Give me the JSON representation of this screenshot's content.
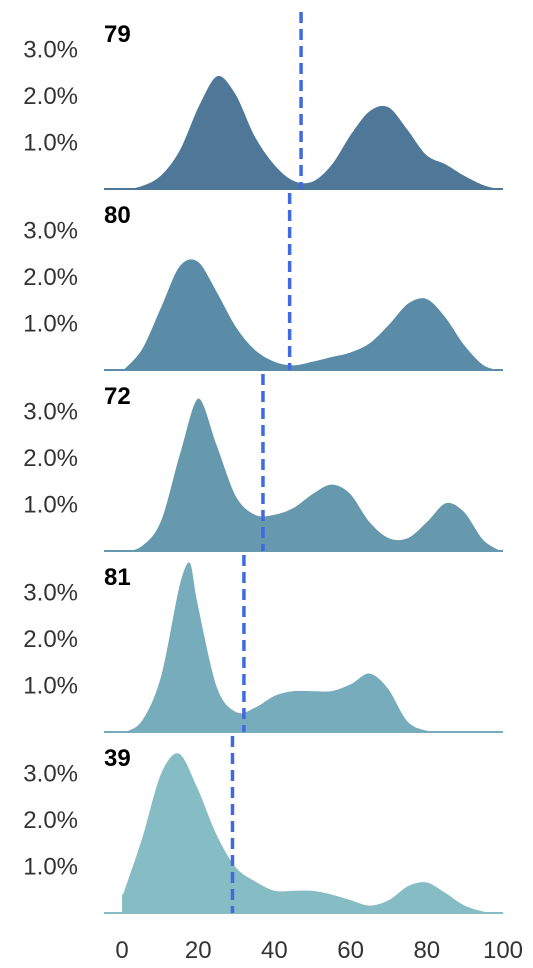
{
  "chart_data": {
    "type": "area",
    "title": "",
    "xlabel": "",
    "ylabel": "",
    "xlim": [
      0,
      100
    ],
    "ylim": [
      0,
      3.6
    ],
    "x_ticks": [
      0,
      20,
      40,
      60,
      80,
      100
    ],
    "x_tick_labels": [
      "0",
      "20",
      "40",
      "60",
      "80",
      "100"
    ],
    "y_ticks": [
      1.0,
      2.0,
      3.0
    ],
    "y_tick_labels": [
      "1.0%",
      "2.0%",
      "3.0%"
    ],
    "grid": false,
    "legend": "none",
    "reference_line_color": "#4169e1",
    "series": [
      {
        "name": "79",
        "color": "#4f7898",
        "mean_line": 47,
        "x": [
          0,
          5,
          10,
          15,
          20,
          25,
          30,
          35,
          40,
          45,
          50,
          55,
          60,
          65,
          70,
          75,
          80,
          85,
          90,
          95,
          100
        ],
        "y": [
          0.0,
          0.08,
          0.3,
          0.85,
          1.8,
          2.45,
          2.05,
          1.15,
          0.55,
          0.2,
          0.18,
          0.55,
          1.2,
          1.7,
          1.78,
          1.3,
          0.75,
          0.55,
          0.3,
          0.1,
          0.0
        ]
      },
      {
        "name": "80",
        "color": "#5a8ca8",
        "mean_line": 44,
        "x": [
          0,
          5,
          10,
          15,
          20,
          25,
          30,
          35,
          40,
          45,
          50,
          55,
          60,
          65,
          70,
          75,
          80,
          85,
          90,
          95,
          100
        ],
        "y": [
          0.0,
          0.45,
          1.35,
          2.25,
          2.35,
          1.7,
          0.95,
          0.45,
          0.2,
          0.12,
          0.2,
          0.3,
          0.4,
          0.6,
          1.0,
          1.45,
          1.55,
          1.15,
          0.55,
          0.12,
          0.0
        ]
      },
      {
        "name": "72",
        "color": "#6698ae",
        "mean_line": 37,
        "x": [
          0,
          5,
          10,
          15,
          20,
          25,
          30,
          35,
          40,
          45,
          50,
          55,
          60,
          65,
          70,
          75,
          80,
          85,
          90,
          95,
          100
        ],
        "y": [
          0.0,
          0.12,
          0.65,
          2.1,
          3.3,
          2.3,
          1.2,
          0.8,
          0.8,
          0.95,
          1.25,
          1.45,
          1.25,
          0.65,
          0.3,
          0.3,
          0.65,
          1.05,
          0.85,
          0.25,
          0.0
        ]
      },
      {
        "name": "81",
        "color": "#76acbb",
        "mean_line": 32,
        "x": [
          0,
          5,
          10,
          15,
          18,
          20,
          25,
          30,
          35,
          40,
          45,
          50,
          55,
          60,
          65,
          70,
          75,
          80,
          85,
          90,
          95,
          100
        ],
        "y": [
          0.0,
          0.25,
          1.2,
          3.2,
          3.65,
          2.8,
          1.0,
          0.45,
          0.55,
          0.8,
          0.9,
          0.9,
          0.9,
          1.05,
          1.28,
          0.95,
          0.25,
          0.05,
          0.02,
          0.0,
          0.0,
          0.0
        ]
      },
      {
        "name": "39",
        "color": "#86bcc4",
        "mean_line": 29,
        "x": [
          0,
          5,
          10,
          15,
          20,
          25,
          30,
          35,
          40,
          45,
          50,
          55,
          60,
          65,
          70,
          75,
          80,
          85,
          90,
          95,
          100
        ],
        "y": [
          0.4,
          1.6,
          3.0,
          3.45,
          2.7,
          1.7,
          1.0,
          0.7,
          0.5,
          0.5,
          0.5,
          0.42,
          0.3,
          0.18,
          0.3,
          0.6,
          0.68,
          0.45,
          0.18,
          0.05,
          0.0
        ]
      }
    ]
  }
}
